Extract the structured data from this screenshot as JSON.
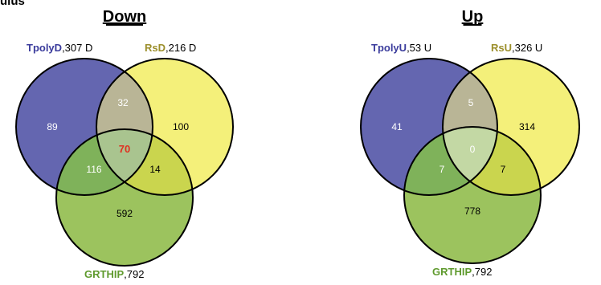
{
  "corner_text": "ulus",
  "colors": {
    "blue": "#6466b0",
    "yellow": "#f4f07a",
    "green": "#9cc35e",
    "overlap_blue_yellow": "#b9b596",
    "overlap_blue_green": "#7fb25a",
    "overlap_yellow_green": "#cad54e",
    "center_down": "#a9c48f",
    "center_up": "#c3d8a4",
    "label_blue": "#3a3b9c",
    "label_yellow": "#9b8e2a",
    "label_green": "#5f9a2e",
    "highlight_red": "#e03020"
  },
  "diagrams": [
    {
      "title": "Down",
      "sets": [
        {
          "name": "TpolyD",
          "count": ",307 D",
          "color": "blue"
        },
        {
          "name": "RsD",
          "count": ",216 D",
          "color": "yellow"
        },
        {
          "name": "GRTHIP",
          "count": ",792",
          "color": "green"
        }
      ],
      "regions": {
        "only_a": "89",
        "only_b": "100",
        "only_c": "592",
        "a_b": "32",
        "a_c": "116",
        "b_c": "14",
        "a_b_c": "70"
      },
      "center_highlight": true
    },
    {
      "title": "Up",
      "sets": [
        {
          "name": "TpolyU",
          "count": ",53 U",
          "color": "blue"
        },
        {
          "name": "RsU",
          "count": ",326 U",
          "color": "yellow"
        },
        {
          "name": "GRTHIP",
          "count": ",792",
          "color": "green"
        }
      ],
      "regions": {
        "only_a": "41",
        "only_b": "314",
        "only_c": "778",
        "a_b": "5",
        "a_c": "7",
        "b_c": "7",
        "a_b_c": "0"
      },
      "center_highlight": false
    }
  ]
}
